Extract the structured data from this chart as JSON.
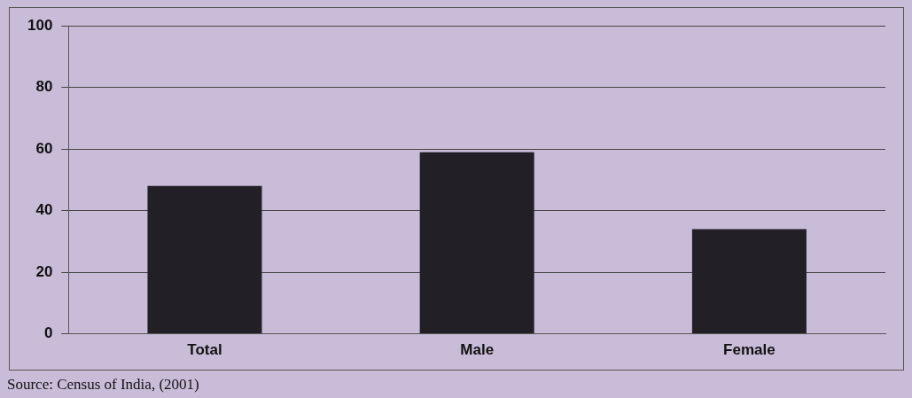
{
  "chart_data": {
    "type": "bar",
    "categories": [
      "Total",
      "Male",
      "Female"
    ],
    "values": [
      48,
      59,
      34
    ],
    "color": "#231f26",
    "ylim": [
      0,
      100
    ],
    "yticks": [
      0,
      20,
      40,
      60,
      80,
      100
    ],
    "grid": "y",
    "legend": false,
    "annotations": [
      "Source: Census of India, (2001)"
    ]
  }
}
